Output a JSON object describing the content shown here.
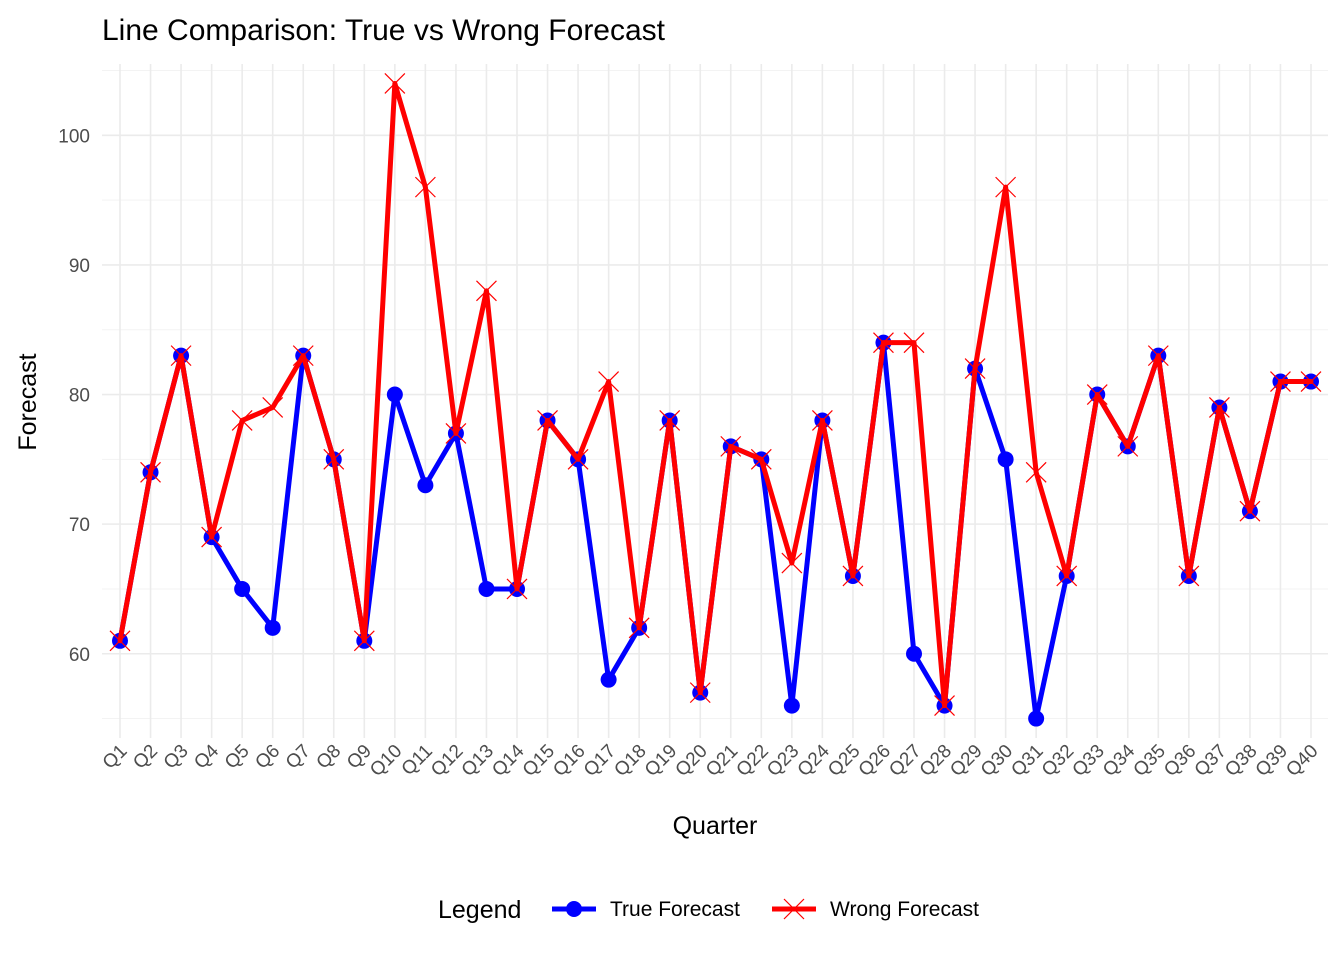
{
  "chart_data": {
    "type": "line",
    "title": "Line Comparison: True vs Wrong Forecast",
    "xlabel": "Quarter",
    "ylabel": "Forecast",
    "ylim": [
      53.5,
      105.5
    ],
    "yticks": [
      60,
      70,
      80,
      90,
      100
    ],
    "grid": true,
    "legend_position": "bottom",
    "legend_title": "Legend",
    "categories": [
      "Q1",
      "Q2",
      "Q3",
      "Q4",
      "Q5",
      "Q6",
      "Q7",
      "Q8",
      "Q9",
      "Q10",
      "Q11",
      "Q12",
      "Q13",
      "Q14",
      "Q15",
      "Q16",
      "Q17",
      "Q18",
      "Q19",
      "Q20",
      "Q21",
      "Q22",
      "Q23",
      "Q24",
      "Q25",
      "Q26",
      "Q27",
      "Q28",
      "Q29",
      "Q30",
      "Q31",
      "Q32",
      "Q33",
      "Q34",
      "Q35",
      "Q36",
      "Q37",
      "Q38",
      "Q39",
      "Q40"
    ],
    "series": [
      {
        "name": "True Forecast",
        "color": "#0000ff",
        "marker": "circle",
        "values": [
          61,
          74,
          83,
          69,
          65,
          62,
          83,
          75,
          61,
          80,
          73,
          77,
          65,
          65,
          78,
          75,
          58,
          62,
          78,
          57,
          76,
          75,
          56,
          78,
          66,
          84,
          60,
          56,
          82,
          75,
          55,
          66,
          80,
          76,
          83,
          66,
          79,
          71,
          81,
          81
        ]
      },
      {
        "name": "Wrong Forecast",
        "color": "#ff0000",
        "marker": "x",
        "values": [
          61,
          74,
          83,
          69,
          78,
          79,
          83,
          75,
          61,
          104,
          96,
          77,
          88,
          65,
          78,
          75,
          81,
          62,
          78,
          57,
          76,
          75,
          67,
          78,
          66,
          84,
          84,
          56,
          82,
          96,
          74,
          66,
          80,
          76,
          83,
          66,
          79,
          71,
          81,
          81
        ]
      }
    ]
  }
}
